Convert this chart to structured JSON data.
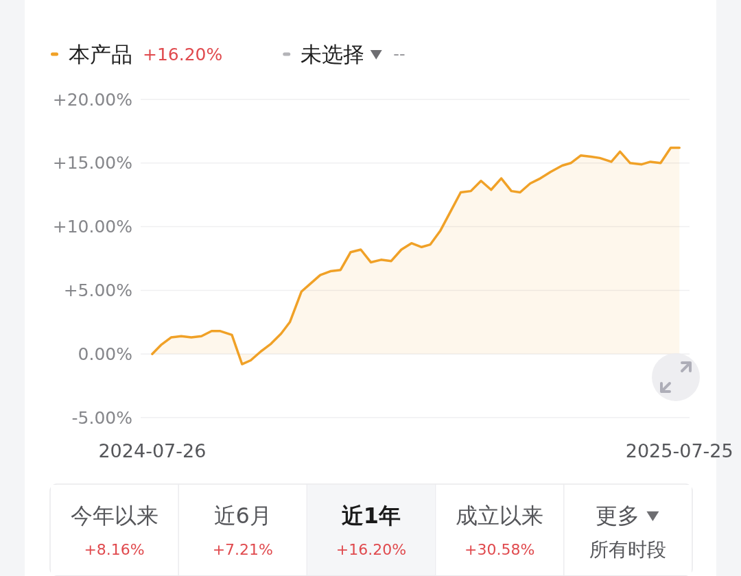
{
  "chart_data": {
    "type": "area",
    "legend": "top left",
    "grid": "y",
    "x": [
      "2024-07-26",
      "2024-08-01",
      "2024-08-08",
      "2024-08-15",
      "2024-08-22",
      "2024-08-29",
      "2024-09-05",
      "2024-09-11",
      "2024-09-19",
      "2024-09-26",
      "2024-10-02",
      "2024-10-09",
      "2024-10-16",
      "2024-10-23",
      "2024-10-29",
      "2024-11-06",
      "2024-11-12",
      "2024-11-19",
      "2024-11-26",
      "2024-12-03",
      "2024-12-10",
      "2024-12-17",
      "2024-12-24",
      "2024-12-31",
      "2025-01-07",
      "2025-01-14",
      "2025-01-21",
      "2025-01-28",
      "2025-02-03",
      "2025-02-10",
      "2025-02-17",
      "2025-02-24",
      "2025-03-03",
      "2025-03-10",
      "2025-03-17",
      "2025-03-24",
      "2025-03-31",
      "2025-04-06",
      "2025-04-13",
      "2025-04-20",
      "2025-04-27",
      "2025-05-05",
      "2025-05-11",
      "2025-05-18",
      "2025-05-25",
      "2025-05-31",
      "2025-06-08",
      "2025-06-14",
      "2025-06-21",
      "2025-06-29",
      "2025-07-05",
      "2025-07-12",
      "2025-07-19",
      "2025-07-25"
    ],
    "series": [
      {
        "name": "本产品",
        "color": "#f0a127",
        "values": [
          0,
          0.7,
          1.3,
          1.4,
          1.3,
          1.4,
          1.8,
          1.8,
          1.5,
          -0.8,
          -0.5,
          0.2,
          0.8,
          1.6,
          2.5,
          4.9,
          5.5,
          6.2,
          6.5,
          6.6,
          8.0,
          8.2,
          7.2,
          7.4,
          7.3,
          8.2,
          8.7,
          8.4,
          8.6,
          9.7,
          11.2,
          12.7,
          12.8,
          13.6,
          12.9,
          13.8,
          12.8,
          12.7,
          13.4,
          13.8,
          14.3,
          14.8,
          15.0,
          15.6,
          15.5,
          15.4,
          15.1,
          15.9,
          15.0,
          14.9,
          15.1,
          15.0,
          16.2,
          16.2
        ]
      },
      {
        "name": "未选择",
        "color": "#b4b4b8",
        "values": [
          null,
          null,
          null,
          null,
          null,
          null,
          null,
          null,
          null,
          null,
          null,
          null,
          null,
          null,
          null,
          null,
          null,
          null,
          null,
          null,
          null,
          null,
          null,
          null,
          null,
          null,
          null,
          null,
          null,
          null,
          null,
          null,
          null,
          null,
          null,
          null,
          null,
          null,
          null,
          null,
          null,
          null,
          null,
          null,
          null,
          null,
          null,
          null,
          null,
          null,
          null,
          null,
          null,
          null
        ]
      }
    ],
    "xlim": [
      "2024-07-18",
      "2025-08-01"
    ],
    "xticks": [
      "2024-07-26",
      "2025-07-25"
    ],
    "ylim": [
      -5,
      20
    ],
    "yticks": [
      {
        "value": -5,
        "label": "-5.00%"
      },
      {
        "value": 0,
        "label": "0.00%"
      },
      {
        "value": 5,
        "label": "+5.00%"
      },
      {
        "value": 10,
        "label": "+10.00%"
      },
      {
        "value": 15,
        "label": "+15.00%"
      },
      {
        "value": 20,
        "label": "+20.00%"
      }
    ],
    "annotations": [
      "+16.20%",
      "--",
      "今年以来",
      "+8.16%",
      "近6月",
      "+7.21%",
      "近1年",
      "+16.20%",
      "成立以来",
      "+30.58%",
      "更多",
      "所有时段"
    ]
  }
}
